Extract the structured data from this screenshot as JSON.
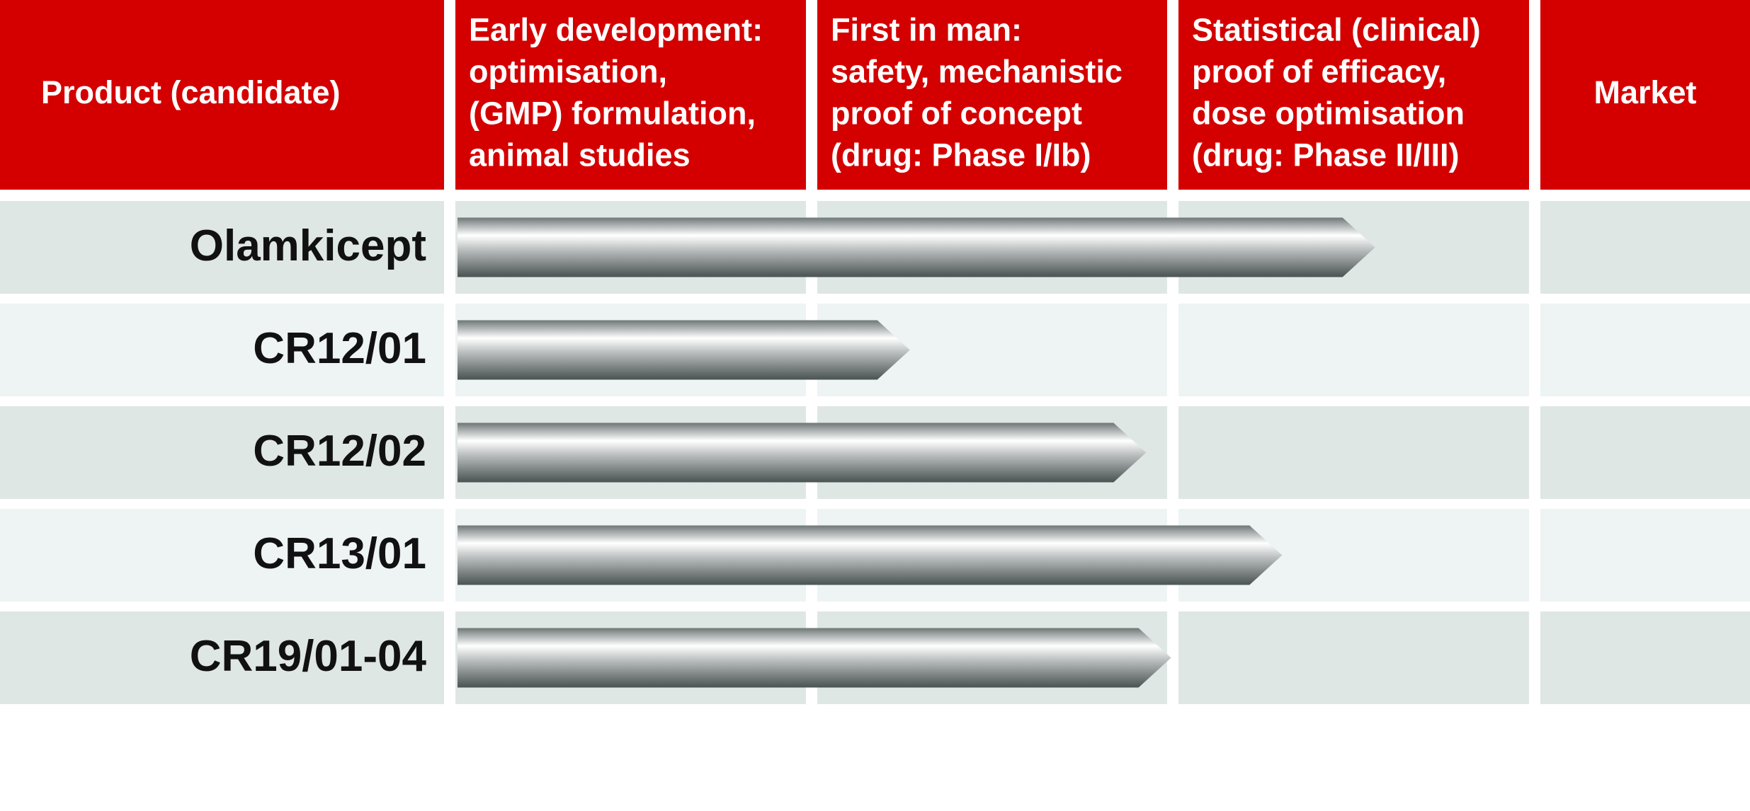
{
  "chart_data": {
    "type": "bar",
    "orientation": "horizontal",
    "category_header": "Product (candidate)",
    "columns": [
      [
        "Early development:",
        "optimisation,",
        "(GMP) formulation,",
        "animal studies"
      ],
      [
        "First in man:",
        "safety, mechanistic",
        "proof of concept",
        "(drug: Phase I/Ib)"
      ],
      [
        "Statistical (clinical)",
        "proof of efficacy,",
        "dose optimisation",
        "(drug: Phase II/III)"
      ],
      [
        "Market"
      ]
    ],
    "categories": [
      "Olamkicept",
      "CR12/01",
      "CR12/02",
      "CR13/01",
      "CR19/01-04"
    ],
    "values": [
      2.57,
      1.27,
      1.93,
      2.31,
      2.0
    ],
    "xlim": [
      0,
      3
    ],
    "header_color": "#d40000"
  }
}
